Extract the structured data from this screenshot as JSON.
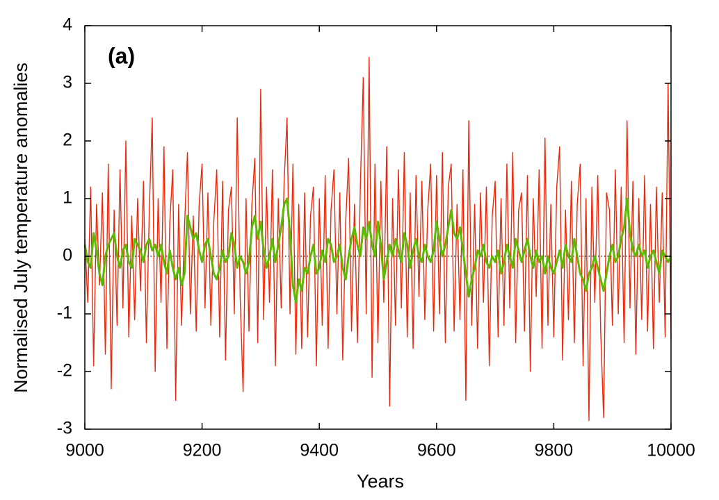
{
  "chart_data": {
    "type": "line",
    "annotation": "(a)",
    "x_label": "Years",
    "y_label": "Normalised July temperature anomalies",
    "xlim": [
      9000,
      10000
    ],
    "ylim": [
      -3,
      4
    ],
    "xticks": [
      9000,
      9200,
      9400,
      9600,
      9800,
      10000
    ],
    "yticks": [
      -3,
      -2,
      -1,
      0,
      1,
      2,
      3,
      4
    ],
    "mirror_ticks": true,
    "reference_line": {
      "y": 0,
      "color": "#000000",
      "style": "dotted"
    },
    "x": [
      9000,
      9005,
      9010,
      9015,
      9020,
      9025,
      9030,
      9035,
      9040,
      9045,
      9050,
      9055,
      9060,
      9065,
      9070,
      9075,
      9080,
      9085,
      9090,
      9095,
      9100,
      9105,
      9110,
      9115,
      9120,
      9125,
      9130,
      9135,
      9140,
      9145,
      9150,
      9155,
      9160,
      9165,
      9170,
      9175,
      9180,
      9185,
      9190,
      9195,
      9200,
      9205,
      9210,
      9215,
      9220,
      9225,
      9230,
      9235,
      9240,
      9245,
      9250,
      9255,
      9260,
      9265,
      9270,
      9275,
      9280,
      9285,
      9290,
      9295,
      9300,
      9305,
      9310,
      9315,
      9320,
      9325,
      9330,
      9335,
      9340,
      9345,
      9350,
      9355,
      9360,
      9365,
      9370,
      9375,
      9380,
      9385,
      9390,
      9395,
      9400,
      9405,
      9410,
      9415,
      9420,
      9425,
      9430,
      9435,
      9440,
      9445,
      9450,
      9455,
      9460,
      9465,
      9470,
      9475,
      9480,
      9485,
      9490,
      9495,
      9500,
      9505,
      9510,
      9515,
      9520,
      9525,
      9530,
      9535,
      9540,
      9545,
      9550,
      9555,
      9560,
      9565,
      9570,
      9575,
      9580,
      9585,
      9590,
      9595,
      9600,
      9605,
      9610,
      9615,
      9620,
      9625,
      9630,
      9635,
      9640,
      9645,
      9650,
      9655,
      9660,
      9665,
      9670,
      9675,
      9680,
      9685,
      9690,
      9695,
      9700,
      9705,
      9710,
      9715,
      9720,
      9725,
      9730,
      9735,
      9740,
      9745,
      9750,
      9755,
      9760,
      9765,
      9770,
      9775,
      9780,
      9785,
      9790,
      9795,
      9800,
      9805,
      9810,
      9815,
      9820,
      9825,
      9830,
      9835,
      9840,
      9845,
      9850,
      9855,
      9860,
      9865,
      9870,
      9875,
      9880,
      9885,
      9890,
      9895,
      9900,
      9905,
      9910,
      9915,
      9920,
      9925,
      9930,
      9935,
      9940,
      9945,
      9950,
      9955,
      9960,
      9965,
      9970,
      9975,
      9980,
      9985,
      9990,
      9995,
      10000
    ],
    "series": [
      {
        "color": "#e8290b",
        "width": 1.4,
        "values": [
          0.3,
          -0.8,
          1.2,
          -1.9,
          0.9,
          -0.5,
          1.1,
          -1.7,
          1.6,
          -2.3,
          0.8,
          -1.2,
          1.5,
          -0.9,
          2.0,
          -1.4,
          0.7,
          -1.1,
          1.0,
          -0.6,
          1.3,
          -1.5,
          0.8,
          2.4,
          -2.0,
          1.0,
          -0.8,
          1.9,
          -1.6,
          0.6,
          1.5,
          -2.5,
          0.9,
          -1.2,
          0.5,
          1.8,
          -1.0,
          0.7,
          -1.3,
          0.9,
          1.6,
          -0.9,
          1.1,
          -1.2,
          0.6,
          1.5,
          -1.4,
          1.3,
          -1.8,
          0.8,
          1.2,
          -1.0,
          2.4,
          -0.7,
          -2.35,
          1.0,
          -1.3,
          0.9,
          1.7,
          -1.5,
          2.9,
          -1.1,
          1.2,
          -0.8,
          1.5,
          -1.9,
          1.0,
          -0.9,
          1.3,
          2.4,
          -1.0,
          1.6,
          -1.7,
          0.9,
          -1.6,
          1.1,
          -1.4,
          0.7,
          1.2,
          -1.9,
          1.0,
          -1.2,
          1.4,
          -1.6,
          0.8,
          1.5,
          -1.0,
          1.1,
          -1.8,
          0.6,
          1.7,
          -1.3,
          0.9,
          -1.5,
          1.2,
          3.1,
          -1.0,
          3.45,
          -2.1,
          1.6,
          -1.5,
          1.3,
          -0.8,
          1.9,
          -2.6,
          1.0,
          -1.2,
          1.5,
          -0.9,
          1.8,
          -1.4,
          1.1,
          -1.6,
          1.4,
          -0.7,
          1.3,
          -1.1,
          0.8,
          1.6,
          -1.3,
          1.4,
          -1.0,
          1.8,
          -1.5,
          1.2,
          1.6,
          -1.3,
          0.9,
          -1.1,
          1.5,
          -2.5,
          2.35,
          -1.2,
          0.9,
          -1.6,
          1.1,
          -0.8,
          1.2,
          -1.9,
          0.7,
          1.3,
          -1.4,
          1.0,
          -1.2,
          1.6,
          -0.9,
          1.8,
          -1.5,
          0.8,
          1.1,
          -1.3,
          1.4,
          -2.0,
          1.0,
          -0.7,
          1.5,
          -1.6,
          2.05,
          -1.2,
          0.9,
          -1.4,
          1.2,
          1.9,
          -1.8,
          0.8,
          -1.1,
          1.3,
          -1.5,
          0.9,
          1.6,
          -1.9,
          1.0,
          -2.85,
          1.2,
          -0.8,
          1.4,
          -1.3,
          -2.8,
          1.1,
          0.8,
          -1.2,
          1.5,
          -1.0,
          1.2,
          -1.5,
          2.35,
          -0.9,
          1.3,
          -1.7,
          1.0,
          -1.1,
          1.4,
          -1.3,
          0.9,
          -1.6,
          1.2,
          -0.8,
          1.1,
          -1.4,
          3.0,
          -1.45
        ]
      },
      {
        "color": "#5cb800",
        "width": 3,
        "values": [
          0.2,
          -0.1,
          -0.2,
          0.4,
          0.1,
          -0.3,
          -0.5,
          0.0,
          0.2,
          0.3,
          0.4,
          0.0,
          -0.2,
          0.1,
          0.2,
          -0.1,
          -0.2,
          0.3,
          0.2,
          0.1,
          -0.1,
          0.2,
          0.3,
          0.1,
          0.2,
          0.0,
          0.2,
          -0.1,
          -0.3,
          0.1,
          -0.2,
          -0.4,
          -0.2,
          -0.5,
          -0.3,
          0.7,
          0.5,
          0.3,
          0.4,
          0.1,
          -0.1,
          0.2,
          0.3,
          0.0,
          -0.3,
          -0.4,
          -0.2,
          0.1,
          -0.1,
          0.0,
          0.4,
          0.2,
          -0.2,
          0.0,
          -0.1,
          -0.3,
          -0.1,
          0.5,
          0.7,
          0.3,
          0.6,
          0.1,
          -0.2,
          0.0,
          0.3,
          -0.1,
          0.2,
          0.5,
          0.9,
          1.0,
          0.4,
          -0.5,
          -0.8,
          -0.4,
          -0.6,
          -0.2,
          -0.3,
          0.0,
          0.2,
          -0.3,
          -0.2,
          0.1,
          -0.1,
          0.3,
          0.2,
          -0.1,
          0.0,
          0.2,
          -0.2,
          -0.4,
          0.0,
          0.3,
          0.5,
          0.2,
          0.0,
          0.5,
          0.3,
          0.6,
          0.2,
          0.0,
          0.6,
          0.2,
          -0.4,
          -0.1,
          0.2,
          0.0,
          0.3,
          0.1,
          -0.1,
          0.4,
          0.2,
          -0.2,
          0.1,
          0.3,
          0.0,
          -0.1,
          0.2,
          0.0,
          -0.1,
          0.1,
          0.6,
          0.3,
          0.0,
          0.2,
          0.5,
          0.8,
          0.4,
          0.3,
          0.5,
          0.1,
          -0.3,
          -0.7,
          -0.4,
          -0.2,
          0.1,
          0.0,
          0.2,
          -0.1,
          -0.2,
          0.0,
          -0.1,
          0.1,
          -0.3,
          -0.1,
          0.2,
          0.0,
          -0.2,
          0.3,
          0.1,
          -0.1,
          0.1,
          0.3,
          0.0,
          -0.2,
          0.1,
          -0.1,
          0.0,
          -0.3,
          0.0,
          -0.2,
          -0.3,
          -0.1,
          0.1,
          -0.2,
          0.2,
          0.0,
          -0.1,
          0.3,
          0.0,
          -0.3,
          -0.4,
          -0.6,
          -0.3,
          -0.2,
          0.0,
          -0.2,
          -0.4,
          -0.6,
          -0.3,
          0.0,
          0.2,
          -0.1,
          0.0,
          0.3,
          0.5,
          1.0,
          0.4,
          0.1,
          0.0,
          0.2,
          0.0,
          0.1,
          -0.2,
          0.0,
          0.1,
          -0.1,
          -0.3,
          0.1,
          0.0,
          -0.1,
          0.0
        ]
      }
    ]
  }
}
